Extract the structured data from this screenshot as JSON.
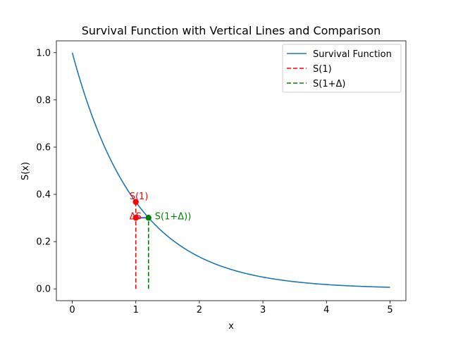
{
  "chart_data": {
    "type": "line",
    "title": "Survival Function with Vertical Lines and Comparison",
    "xlabel": "x",
    "ylabel": "S(x)",
    "xlim": [
      -0.25,
      5.25
    ],
    "ylim": [
      -0.05,
      1.05
    ],
    "xticks": [
      0,
      1,
      2,
      3,
      4,
      5
    ],
    "xtick_labels": [
      "0",
      "1",
      "2",
      "3",
      "4",
      "5"
    ],
    "yticks": [
      0.0,
      0.2,
      0.4,
      0.6,
      0.8,
      1.0
    ],
    "ytick_labels": [
      "0.0",
      "0.2",
      "0.4",
      "0.6",
      "0.8",
      "1.0"
    ],
    "grid": false,
    "legend_position": "upper right",
    "series": [
      {
        "name": "Survival Function",
        "style": "solid",
        "color": "#1f77b4",
        "function": "exp(-x)",
        "x": [
          0,
          0.25,
          0.5,
          0.75,
          1.0,
          1.2,
          1.5,
          2.0,
          2.5,
          3.0,
          3.5,
          4.0,
          4.5,
          5.0
        ],
        "y": [
          1.0,
          0.779,
          0.607,
          0.472,
          0.368,
          0.301,
          0.223,
          0.135,
          0.082,
          0.05,
          0.03,
          0.018,
          0.011,
          0.007
        ]
      },
      {
        "name": "S(1)",
        "style": "dashed",
        "color": "#ff0000",
        "x": [
          1.0,
          1.0
        ],
        "y": [
          0.0,
          0.368
        ]
      },
      {
        "name": "S(1+Δ)",
        "style": "dashed",
        "color": "#008000",
        "x": [
          1.2,
          1.2
        ],
        "y": [
          0.0,
          0.301
        ]
      }
    ],
    "points": [
      {
        "x": 1.0,
        "y": 0.368,
        "color": "#ff0000"
      },
      {
        "x": 1.0,
        "y": 0.301,
        "color": "#ff0000"
      },
      {
        "x": 1.2,
        "y": 0.301,
        "color": "#008000"
      }
    ],
    "annotations": [
      {
        "text": "S(1)",
        "x": 1.0,
        "y": 0.368,
        "color": "#ff0000"
      },
      {
        "text": "ΔS",
        "x": 1.0,
        "y": 0.301,
        "color": "#ff0000"
      },
      {
        "text": "S(1+Δ))",
        "x": 1.2,
        "y": 0.301,
        "color": "#008000"
      }
    ],
    "delta_segment": {
      "x": [
        1.0,
        1.2
      ],
      "y": [
        0.301,
        0.301
      ],
      "color": "#0000ff"
    }
  }
}
